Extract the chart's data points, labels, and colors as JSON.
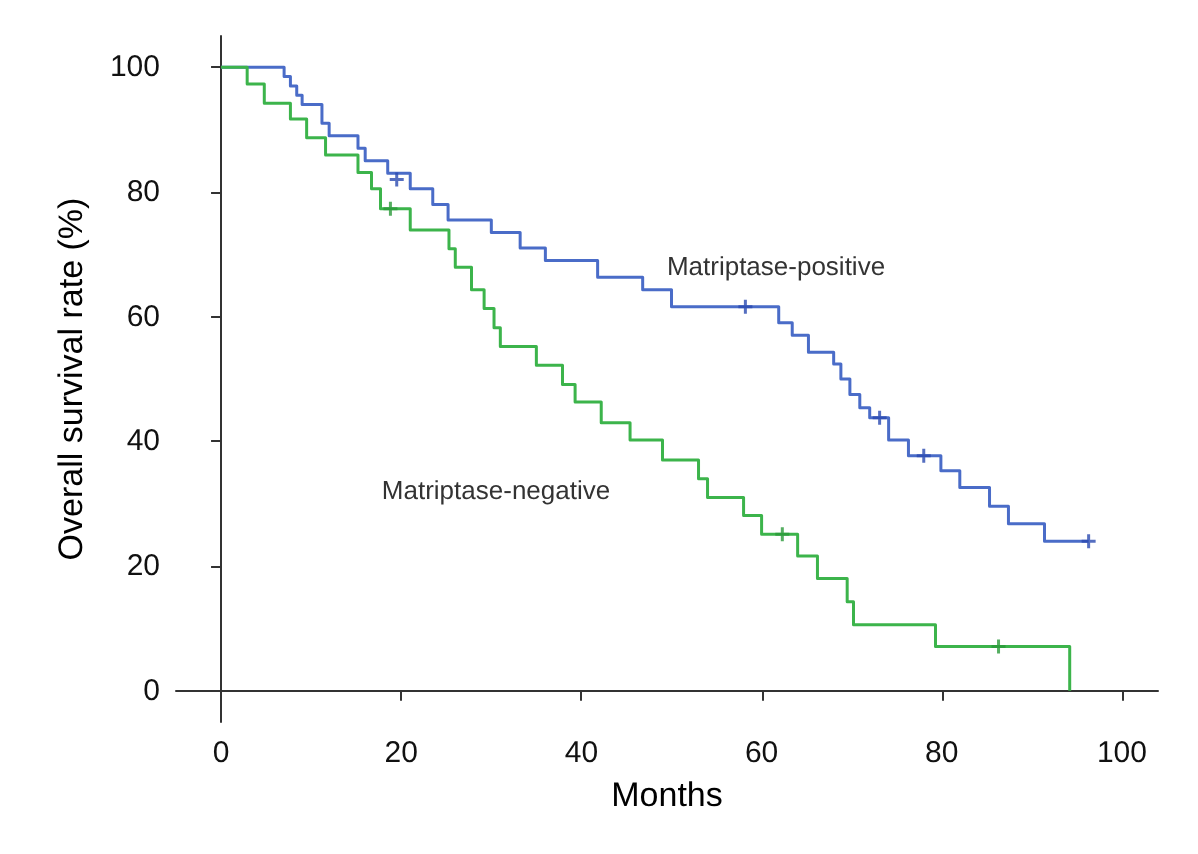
{
  "chart_data": {
    "type": "step",
    "xlabel": "Months",
    "ylabel": "Overall survival rate (%)",
    "xlim": [
      -5,
      104
    ],
    "xticks": [
      0,
      20,
      40,
      60,
      80,
      100
    ],
    "ylim": [
      -5,
      105
    ],
    "yticks": [
      0,
      20,
      40,
      60,
      80,
      100
    ],
    "grid": false,
    "series": [
      {
        "color": "#4a6cc8",
        "x": [
          0,
          7,
          7.7,
          8.4,
          9,
          11.2,
          12,
          15.2,
          16,
          18.5,
          21,
          23.5,
          25.2,
          30,
          33.2,
          36,
          41.8,
          46.8,
          50,
          61.9,
          63.4,
          65.2,
          68,
          68.8,
          69.8,
          70.9,
          72,
          74.1,
          76.3,
          79.9,
          82,
          85.3,
          87.4,
          91.4,
          96.3
        ],
        "values": [
          100,
          98.5,
          97,
          95.5,
          94,
          91,
          89,
          87,
          85,
          83,
          80.5,
          78,
          75.5,
          73.5,
          71,
          69,
          66.3,
          64.3,
          61.6,
          59,
          57,
          54.3,
          52.4,
          50,
          47.5,
          45.4,
          43.8,
          40.2,
          37.7,
          35.3,
          32.6,
          29.6,
          26.8,
          24,
          24
        ]
      },
      {
        "color": "#3cb44b",
        "x": [
          0,
          2.9,
          4.8,
          7.7,
          9.5,
          11.6,
          15.2,
          16.7,
          17.7,
          21,
          25.3,
          26,
          27.8,
          29.2,
          30.3,
          31,
          35,
          37.9,
          39.3,
          42.2,
          45.4,
          49,
          53,
          54,
          58,
          60,
          64,
          66.2,
          69.5,
          70.2,
          79.3,
          94.2
        ],
        "values": [
          100,
          97.3,
          94.2,
          91.7,
          88.7,
          85.9,
          83.1,
          80.5,
          77.3,
          73.9,
          70.9,
          67.9,
          64.3,
          61.3,
          58.2,
          55.2,
          52.2,
          49.1,
          46.3,
          43,
          40.2,
          37,
          34,
          31,
          28.1,
          25.1,
          21.6,
          18,
          14.3,
          10.6,
          7.1,
          0
        ]
      },
      {
        "type": "scatter",
        "marker": "cross",
        "color": "#2a4ab0",
        "x": [
          19.5,
          58.2,
          73.1,
          78,
          96.3
        ],
        "values": [
          82,
          61.6,
          43.8,
          37.7,
          24
        ]
      },
      {
        "type": "scatter",
        "marker": "cross",
        "color": "#2a9a3a",
        "x": [
          18.8,
          62.3,
          86.3
        ],
        "values": [
          77.3,
          25.1,
          7.1
        ]
      }
    ],
    "annotations": [
      "Matriptase-positive",
      "Matriptase-negative"
    ]
  }
}
